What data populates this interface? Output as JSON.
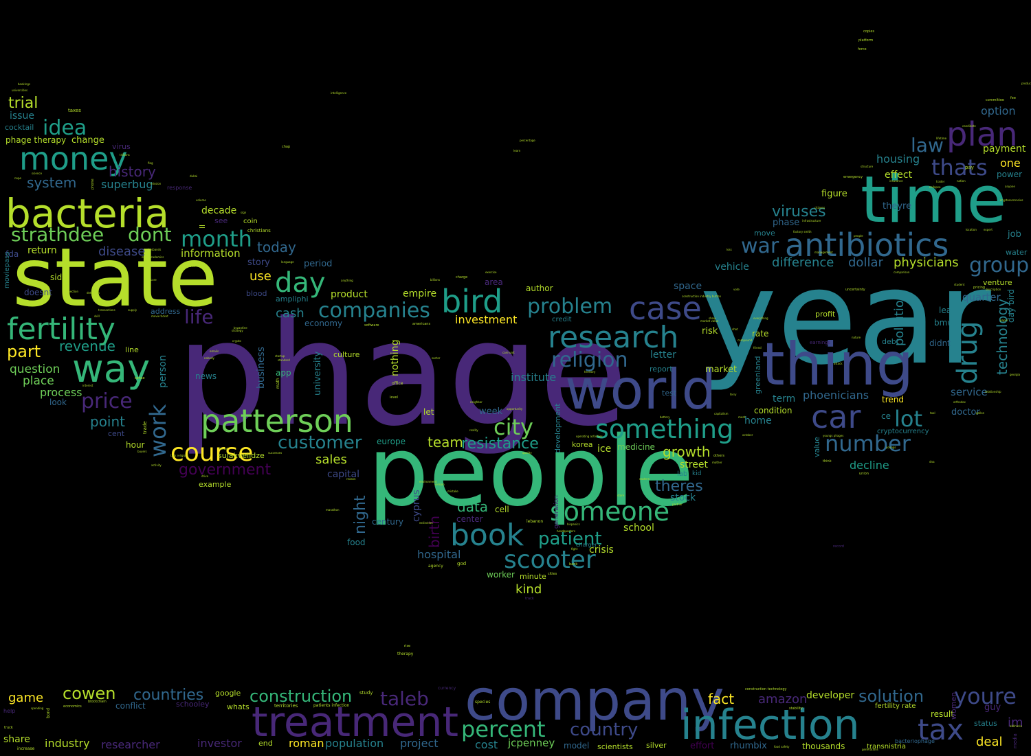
{
  "palette": {
    "background": "#000000",
    "viridis": [
      "#440154",
      "#482878",
      "#3e4a89",
      "#31688e",
      "#26828e",
      "#1f9e89",
      "#35b779",
      "#6ece58",
      "#b5de2b",
      "#fde725"
    ]
  },
  "words": {
    "w_phage": "phage",
    "w_year": "year",
    "w_people": "people",
    "w_state": "state",
    "w_time": "time",
    "w_world": "world",
    "w_thing": "thing",
    "w_company": "company",
    "w_infection": "infection",
    "w_treatment": "treatment",
    "w_bacteria": "bacteria",
    "w_antibiotics": "antibiotics",
    "w_patterson": "patterson",
    "w_money": "money",
    "w_research": "research",
    "w_fertility": "fertility",
    "w_book": "book",
    "w_way": "way",
    "w_plan": "plan",
    "w_car": "car",
    "w_case": "case",
    "w_bird": "bird",
    "w_something": "something",
    "w_someone": "someone",
    "w_drug": "drug",
    "w_scooter": "scooter",
    "w_course": "course",
    "w_day": "day",
    "w_tax": "tax",
    "w_youre": "youre",
    "w_percent": "percent",
    "w_thats": "thats",
    "w_number": "number",
    "w_lot": "lot",
    "w_companies": "companies",
    "w_religion": "religion",
    "w_problem": "problem",
    "w_city": "city",
    "w_month": "month",
    "w_strathdee": "strathdee",
    "w_dont": "dont",
    "w_idea": "idea",
    "w_price": "price",
    "w_work": "work",
    "w_customer": "customer",
    "w_country": "country",
    "w_construction": "construction",
    "w_taleb": "taleb",
    "w_group": "group",
    "w_war": "war",
    "w_patient": "patient",
    "w_law": "law",
    "w_countries": "countries",
    "w_cowen": "cowen",
    "w_solution": "solution",
    "w_life": "life",
    "w_government": "government",
    "w_resistance": "resistance",
    "w_viruses": "viruses",
    "w_growth": "growth",
    "w_theres": "theres",
    "w_night": "night",
    "w_technology": "technology",
    "w_amazon": "amazon",
    "w_fact": "fact",
    "w_history": "history",
    "w_system": "system",
    "w_revenue": "revenue",
    "w_part": "part",
    "w_trial": "trial",
    "w_team": "team",
    "w_data": "data",
    "w_pollution": "pollution",
    "w_phoenicians": "phoenicians",
    "w_difference": "difference",
    "w_dollar": "dollar",
    "w_physicians": "physicians",
    "w_investment": "investment",
    "w_today": "today",
    "w_disease": "disease",
    "w_superbug": "superbug",
    "w_point": "point",
    "w_question": "question",
    "w_place": "place",
    "w_process": "process",
    "w_sales": "sales",
    "w_cash": "cash",
    "w_use": "use",
    "w_institute": "institute",
    "w_decline": "decline",
    "w_game": "game",
    "w_industry": "industry",
    "w_researcher": "researcher",
    "w_investor": "investor",
    "w_project": "project",
    "w_population": "population",
    "w_roman": "roman",
    "w_cost": "cost",
    "w_jcpenney": "jcpenney",
    "w_developer": "developer",
    "w_deal": "deal",
    "w_share": "share",
    "w_im": "im",
    "w_hospital": "hospital",
    "w_birth": "birth",
    "w_kind": "kind",
    "w_housing": "housing",
    "w_option": "option",
    "w_one": "one",
    "w_payment": "payment",
    "w_effect": "effect",
    "w_quarter": "quarter",
    "w_service": "service",
    "w_doctor": "doctor",
    "w_street": "street",
    "w_stock": "stock",
    "w_school": "school",
    "w_crisis": "crisis",
    "w_information": "information",
    "w_return": "return",
    "w_issue": "issue",
    "w_cocktail": "cocktail",
    "w_phage_therapy": "phage therapy",
    "w_change": "change",
    "w_decade": "decade",
    "w_story": "story",
    "w_period": "period",
    "w_product": "product",
    "w_empire": "empire",
    "w_university": "university",
    "w_economy": "economy",
    "w_culture": "culture",
    "w_nothing": "nothing",
    "w_app": "app",
    "w_business": "business",
    "w_person": "person",
    "w_news": "news",
    "w_ice": "ice",
    "w_medicine": "medicine",
    "w_europe": "europe",
    "w_capital": "capital",
    "w_cyprus": "cyprus",
    "w_center": "center",
    "w_cell": "cell",
    "w_author": "author",
    "w_area": "area",
    "w_week": "week",
    "w_let": "let",
    "w_hour": "hour",
    "w_look": "look",
    "w_cent": "cent",
    "w_line": "line",
    "w_side": "side",
    "w_doesnt": "doesnt",
    "w_fda": "fda",
    "w_address": "address",
    "w_blood": "blood",
    "w_ampliphi": "ampliphi",
    "w_sulakvelidze": "sulakvelidze",
    "w_example": "example",
    "w_food": "food",
    "w_worker": "worker",
    "w_minute": "minute",
    "w_century": "century",
    "w_figure": "figure",
    "w_theyre": "theyre",
    "w_phase": "phase",
    "w_vehicle": "vehicle",
    "w_space": "space",
    "w_risk": "risk",
    "w_rate": "rate",
    "w_letter": "letter",
    "w_report": "report",
    "w_market": "market",
    "w_test": "test",
    "w_term": "term",
    "w_condition": "condition",
    "w_home": "home",
    "w_lead": "lead",
    "w_bmw": "bmw",
    "w_job": "job",
    "w_water": "water",
    "w_power": "power",
    "w_venture": "venture",
    "w_trend": "trend",
    "w_ce": "ce",
    "w_cryptocurrency": "cryptocurrency",
    "w_didnt": "didnt",
    "w_profit": "profit",
    "w_debt": "debt",
    "w_value": "value",
    "w_lab": "lab",
    "w_kid": "kid",
    "w_move": "move",
    "w_day_bird": "day bird",
    "w_greenland": "greenland",
    "w_korea": "korea",
    "w_development": "development",
    "w_google": "google",
    "w_conflict": "conflict",
    "w_schooley": "schooley",
    "w_whats": "whats",
    "w_model": "model",
    "w_end": "end",
    "w_scientists": "scientists",
    "w_silver": "silver",
    "w_effort": "effort",
    "w_rhumbix": "rhumbix",
    "w_thousands": "thousands",
    "w_transnistria": "transnistria",
    "w_result": "result",
    "w_status": "status",
    "w_guy": "guy",
    "w_women": "women",
    "w_fertility_rate": "fertility rate",
    "w_bacteriophage": "bacteriophage",
    "w_generation": "generation",
    "w_ll": "ll",
    "w_see": "see",
    "w_coin": "coin",
    "w_christians": "christians",
    "w_charger": "charger",
    "w_credit": "credit",
    "w_moviepass": "moviepass",
    "w_virus": "virus",
    "w_taxes": "taxes",
    "w_response": "response",
    "w_copies": "copies",
    "w_platform": "platform",
    "w_force": "force",
    "w_bookings": "bookings",
    "w_universities": "universities",
    "w_currency": "currency",
    "w_rise": "rise",
    "w_therapy": "therapy",
    "w_record": "record",
    "w_increase": "increase",
    "w_help": "help",
    "w_territories": "territories",
    "w_patients_infection": "patients infection",
    "w_construction_technology": "construction technology",
    "w_study": "study",
    "w_species": "species",
    "w_economics": "economics",
    "w_blockchain": "blockchain",
    "w_stability": "stability",
    "w_truck": "truck",
    "w_track": "track",
    "w_god": "god",
    "w_agency": "agency",
    "w_bank": "bank",
    "w_fight": "fight",
    "w_cities": "cities",
    "w_lebanon": "lebanon",
    "w_trade": "trade",
    "w_chap": "chap",
    "w_percentage": "percentage",
    "w_emergency": "emergency",
    "w_pay": "pay",
    "w_committee": "committee",
    "w_fee": "fee",
    "w_uncertainty": "uncertainty",
    "w_sector": "sector",
    "w_charge": "charge",
    "w_software": "software",
    "w_americans": "americans",
    "w_office": "office",
    "w_level": "level",
    "w_startup": "startup",
    "w_math": "math",
    "w_union": "union",
    "w_think": "think",
    "w_others": "others",
    "w_october": "october",
    "w_pricing": "pricing",
    "w_earnings": "earnings",
    "w_infrastructure": "infrastructure",
    "w_people_tiny": "people",
    "w_hispanics": "hispanics",
    "w_intelligence": "intelligence",
    "w_billions": "billions",
    "w_sense": "sense",
    "w_strategy": "strategy",
    "w_crypto": "crypto",
    "w_nation": "nation",
    "w_trader": "trader",
    "w_orthodox": "orthodox",
    "w_byzantine": "byzantine",
    "w_movie_ticket": "movie ticket",
    "w_ice_core": "ice core",
    "w_care_unit": "care unit",
    "w_youngs_phages": "youngs phages",
    "w_task_religion": "task religion",
    "w_market_value": "market value",
    "w_construction_industry_button": "construction industry button",
    "w_operating_activities": "operating activities",
    "w_factory_smith": "factory smith",
    "w_citizens": "citizens",
    "w_vote": "vote",
    "w_territory": "territory",
    "w_partner": "partner",
    "w_neighbor": "neighbor",
    "w_opportunity": "opportunity",
    "w_attack": "attack",
    "w_compound": "compound",
    "w_management": "management",
    "w_connection": "connection",
    "w_safety": "safety",
    "w_language": "language",
    "w_reality": "reality",
    "w_nope": "nope",
    "w_science": "science",
    "w_structure": "structure",
    "w_location": "location",
    "w_expert": "expert",
    "w_exercise": "exercise",
    "w_student": "student",
    "w_nature": "nature",
    "w_drive": "drive",
    "w_paper": "paper",
    "w_media": "media",
    "w_abkhazia": "abkhazia",
    "w_spending": "spending",
    "w_anything": "anything",
    "w_everything": "everything",
    "w_georgia": "georgia",
    "w_food_safety": "food safety",
    "w_interest": "interest",
    "w_detection": "detection",
    "w_generations": "generations",
    "w_volume": "volume",
    "w_flag": "flag",
    "w_trillions": "trillions",
    "w_dubai": "dubai",
    "w_mission": "mission",
    "w_insurance": "insurance",
    "w_phone": "phone",
    "w_fraud": "fraud",
    "w_babies": "babies",
    "w_husbands": "husbands",
    "w_academics": "academics",
    "w_skill": "skill",
    "w_friend": "friend",
    "w_shot": "shot",
    "w_loss": "loss",
    "w_show": "show",
    "w_ferry": "ferry",
    "w_nobody": "nobody",
    "w_standard": "standard",
    "w_tool": "tool",
    "w_dna": "dna",
    "w_store": "store",
    "w_youngs": "youngs",
    "w_mother": "mother",
    "w_relationship": "relationship",
    "w_description": "description",
    "w_productivity": "productivity",
    "w_comparison": "comparison",
    "w_lifetime": "lifetime",
    "w_candidate": "candidate",
    "w_anyone": "anyone",
    "w_cryptocurrencies": "cryptocurrencies",
    "w_collapse": "collapse",
    "w_version": "version",
    "w_mistake": "mistake",
    "w_battery": "battery",
    "w_environment": "environment",
    "w_extinction": "extinction",
    "w_learn": "learn",
    "w_supply": "supply",
    "w_activity": "activity",
    "w_buyers": "buyers",
    "w_bond": "bond",
    "w_reason": "reason",
    "w_headquarters": "headquarters",
    "w_successes": "successes",
    "w_doesnt_tiny": "doesnt",
    "w_transactions": "transactions",
    "w_marathon": "marathon",
    "w_quality": "quality",
    "w_sign": "sign",
    "w_eastern": "eastern",
    "w_meat": "meat",
    "w_capitalism": "capitalism",
    "w_gallon": "gallon",
    "w_emails": "emails"
  }
}
